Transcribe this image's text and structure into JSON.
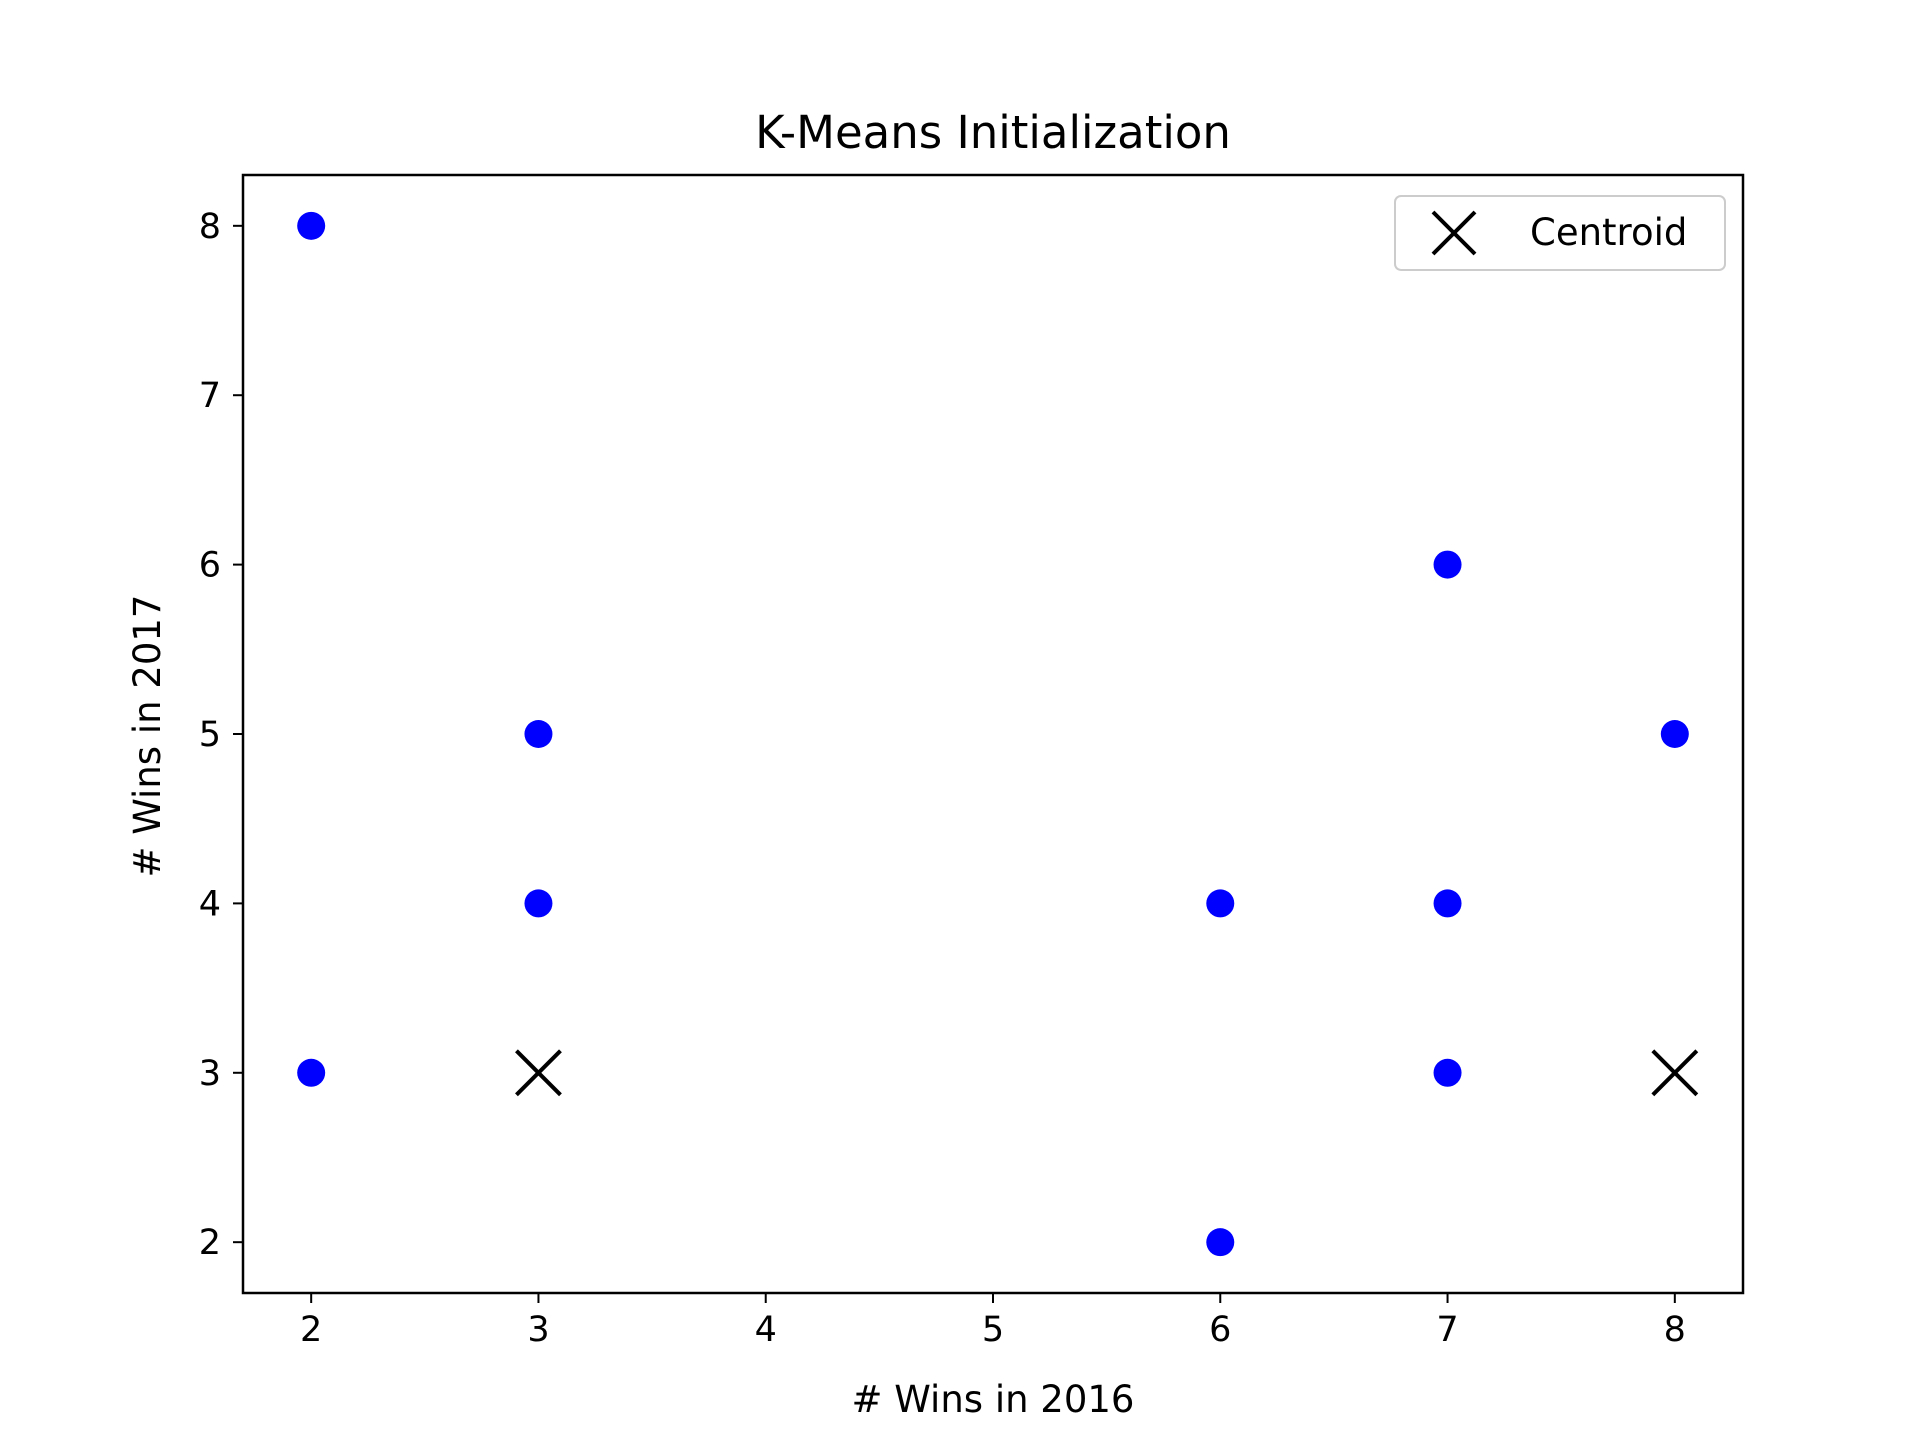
{
  "chart_data": {
    "type": "scatter",
    "title": "K-Means Initialization",
    "xlabel": "# Wins in 2016",
    "ylabel": "# Wins in 2017",
    "xlim": [
      1.7,
      8.3
    ],
    "ylim": [
      1.7,
      8.3
    ],
    "xticks": [
      2,
      3,
      4,
      5,
      6,
      7,
      8
    ],
    "yticks": [
      2,
      3,
      4,
      5,
      6,
      7,
      8
    ],
    "grid": false,
    "legend_position": "top-right",
    "series": [
      {
        "marker": "circle",
        "color": "#0000ff",
        "points": [
          {
            "x": 2,
            "y": 8
          },
          {
            "x": 2,
            "y": 3
          },
          {
            "x": 3,
            "y": 5
          },
          {
            "x": 3,
            "y": 4
          },
          {
            "x": 6,
            "y": 4
          },
          {
            "x": 6,
            "y": 2
          },
          {
            "x": 7,
            "y": 6
          },
          {
            "x": 7,
            "y": 4
          },
          {
            "x": 7,
            "y": 3
          },
          {
            "x": 8,
            "y": 5
          }
        ]
      },
      {
        "name": "Centroid",
        "marker": "x",
        "color": "#000000",
        "points": [
          {
            "x": 3,
            "y": 3
          },
          {
            "x": 8,
            "y": 3
          }
        ]
      }
    ]
  }
}
